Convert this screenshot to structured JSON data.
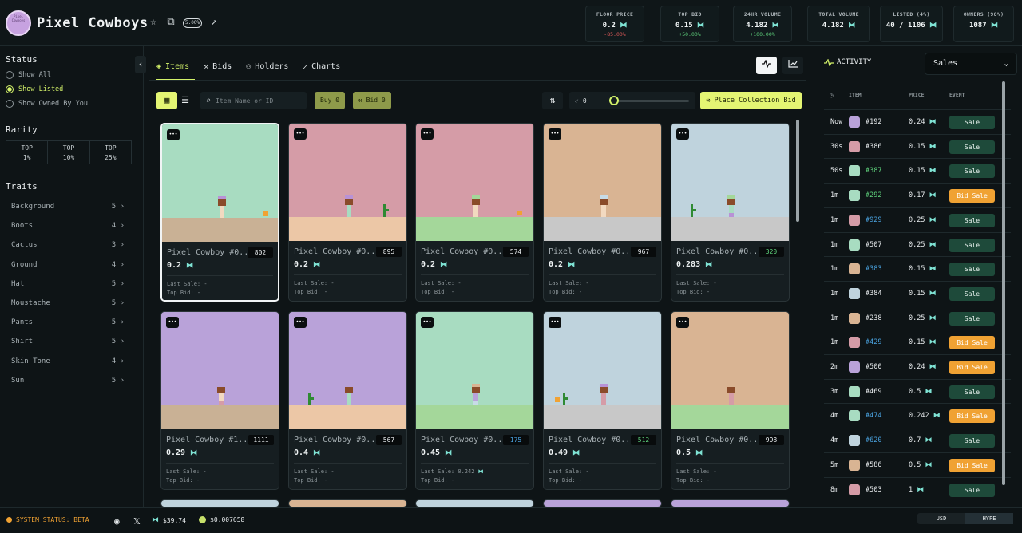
{
  "header": {
    "title": "Pixel Cowboys",
    "logo_text": "Pixel Cowboys",
    "royalty": "5.00%",
    "stats": [
      {
        "label": "FLOOR PRICE",
        "value": "0.2",
        "change": "-85.00%",
        "trend": "neg"
      },
      {
        "label": "TOP BID",
        "value": "0.15",
        "change": "+50.00%",
        "trend": "pos"
      },
      {
        "label": "24HR VOLUME",
        "value": "4.182",
        "change": "+100.00%",
        "trend": "pos"
      },
      {
        "label": "TOTAL VOLUME",
        "value": "4.182"
      },
      {
        "label": "LISTED (4%)",
        "value": "40 / 1106"
      },
      {
        "label": "OWNERS (98%)",
        "value": "1087"
      }
    ]
  },
  "sidebar": {
    "status_title": "Status",
    "status_options": [
      {
        "label": "Show All",
        "selected": false
      },
      {
        "label": "Show Listed",
        "selected": true
      },
      {
        "label": "Show Owned By You",
        "selected": false
      }
    ],
    "rarity_title": "Rarity",
    "rarity": [
      {
        "top": "TOP",
        "pct": "1%"
      },
      {
        "top": "TOP",
        "pct": "10%"
      },
      {
        "top": "TOP",
        "pct": "25%"
      }
    ],
    "traits_title": "Traits",
    "traits": [
      {
        "name": "Background",
        "count": "5"
      },
      {
        "name": "Boots",
        "count": "4"
      },
      {
        "name": "Cactus",
        "count": "3"
      },
      {
        "name": "Ground",
        "count": "4"
      },
      {
        "name": "Hat",
        "count": "5"
      },
      {
        "name": "Moustache",
        "count": "5"
      },
      {
        "name": "Pants",
        "count": "5"
      },
      {
        "name": "Shirt",
        "count": "5"
      },
      {
        "name": "Skin Tone",
        "count": "4"
      },
      {
        "name": "Sun",
        "count": "5"
      }
    ]
  },
  "tabs": [
    {
      "label": "Items",
      "icon": "layers-icon"
    },
    {
      "label": "Bids",
      "icon": "gavel-icon"
    },
    {
      "label": "Holders",
      "icon": "users-icon"
    },
    {
      "label": "Charts",
      "icon": "chart-icon"
    }
  ],
  "toolbar": {
    "search_placeholder": "Item Name or ID",
    "buy_label": "Buy 0",
    "bid_label": "Bid 0",
    "sweep_value": "0",
    "place_bid_label": "Place Collection Bid"
  },
  "colors": {
    "accent": "#d4f36a",
    "hype": "#7fe3d4",
    "sale": "#1e4a3a",
    "bid_sale": "#f0a233"
  },
  "cards": [
    {
      "name": "Pixel Cowboy #0...",
      "rank": "802",
      "price": "0.2",
      "last_sale": "Last Sale: -",
      "top_bid": "Top Bid: -",
      "bg": "#a8dcc1",
      "ground": "#c9b195",
      "hat": "#b892d6",
      "shirt": "#f2d9c0",
      "pants": "#f2d9c0",
      "cactus": false,
      "sun": true,
      "rank_color": "#e8ecee"
    },
    {
      "name": "Pixel Cowboy #0...",
      "rank": "895",
      "price": "0.2",
      "last_sale": "Last Sale: -",
      "top_bid": "Top Bid: -",
      "bg": "#d59ca7",
      "ground": "#ecc7a6",
      "hat": "#b892d6",
      "shirt": "#a8dcc1",
      "pants": "#a8dcc1",
      "cactus": true,
      "sun": false,
      "rank_color": "#e8ecee"
    },
    {
      "name": "Pixel Cowboy #0...",
      "rank": "574",
      "price": "0.2",
      "last_sale": "Last Sale: -",
      "top_bid": "Top Bid: -",
      "bg": "#d59ca7",
      "ground": "#a4d79a",
      "hat": "#a4d79a",
      "shirt": "#f2d9c0",
      "pants": "#f2d9c0",
      "cactus": false,
      "sun": true,
      "rank_color": "#e8ecee"
    },
    {
      "name": "Pixel Cowboy #0...",
      "rank": "967",
      "price": "0.2",
      "last_sale": "Last Sale: -",
      "top_bid": "Top Bid: -",
      "bg": "#d9b493",
      "ground": "#c8c8c8",
      "hat": "#c7dbe6",
      "shirt": "#f2d9c0",
      "pants": "#f2d9c0",
      "cactus": false,
      "sun": false,
      "rank_color": "#e8ecee"
    },
    {
      "name": "Pixel Cowboy #0...",
      "rank": "320",
      "price": "0.283",
      "last_sale": "Last Sale: -",
      "top_bid": "Top Bid: -",
      "bg": "#bfd3dd",
      "ground": "#c8c8c8",
      "hat": "#a4d79a",
      "shirt": "#a8dcc1",
      "pants": "#b892d6",
      "cactus": true,
      "sun": false,
      "rank_color": "#5fd37d"
    },
    {
      "name": "Pixel Cowboy #1...",
      "rank": "1111",
      "price": "0.29",
      "last_sale": "Last Sale: -",
      "top_bid": "Top Bid: -",
      "bg": "#b9a2d9",
      "ground": "#c9b195",
      "hat": "#b9a2d9",
      "shirt": "#f2d9c0",
      "pants": "#d59ca7",
      "cactus": false,
      "sun": false,
      "rank_color": "#e8ecee"
    },
    {
      "name": "Pixel Cowboy #0...",
      "rank": "567",
      "price": "0.4",
      "last_sale": "Last Sale: -",
      "top_bid": "Top Bid: -",
      "bg": "#b9a2d9",
      "ground": "#ecc7a6",
      "hat": "#b9a2d9",
      "shirt": "#a8dcc1",
      "pants": "#a8dcc1",
      "cactus": true,
      "sun": false,
      "rank_color": "#e8ecee"
    },
    {
      "name": "Pixel Cowboy #0...",
      "rank": "175",
      "price": "0.45",
      "last_sale": "Last Sale: 0.242",
      "top_bid": "Top Bid: -",
      "bg": "#a8dcc1",
      "ground": "#a4d79a",
      "hat": "#d9b493",
      "shirt": "#b9a2d9",
      "pants": "#c7dbe6",
      "cactus": false,
      "sun": false,
      "rank_color": "#4aa3e0"
    },
    {
      "name": "Pixel Cowboy #0...",
      "rank": "512",
      "price": "0.49",
      "last_sale": "Last Sale: -",
      "top_bid": "Top Bid: -",
      "bg": "#bfd3dd",
      "ground": "#c8c8c8",
      "hat": "#b892d6",
      "shirt": "#d59ca7",
      "pants": "#d59ca7",
      "cactus": true,
      "sun": true,
      "rank_color": "#5fd37d"
    },
    {
      "name": "Pixel Cowboy #0...",
      "rank": "998",
      "price": "0.5",
      "last_sale": "Last Sale: -",
      "top_bid": "Top Bid: -",
      "bg": "#d9b493",
      "ground": "#a4d79a",
      "hat": "#d9b493",
      "shirt": "#d59ca7",
      "pants": "#d59ca7",
      "cactus": false,
      "sun": false,
      "rank_color": "#e8ecee"
    }
  ],
  "peek_cards": [
    "#bfd3dd",
    "#d9b493",
    "#bfd3dd",
    "#b9a2d9",
    "#b9a2d9"
  ],
  "activity": {
    "title": "ACTIVITY",
    "filter": "Sales",
    "headers": {
      "item": "ITEM",
      "price": "PRICE",
      "event": "EVENT"
    },
    "rows": [
      {
        "time": "Now",
        "id": "#192",
        "price": "0.24",
        "event": "Sale",
        "swatch": "#b9a2d9",
        "id_color": "white"
      },
      {
        "time": "30s",
        "id": "#386",
        "price": "0.15",
        "event": "Sale",
        "swatch": "#d59ca7",
        "id_color": "white"
      },
      {
        "time": "50s",
        "id": "#387",
        "price": "0.15",
        "event": "Sale",
        "swatch": "#a8dcc1",
        "id_color": "green"
      },
      {
        "time": "1m",
        "id": "#292",
        "price": "0.17",
        "event": "Bid Sale",
        "swatch": "#a8dcc1",
        "id_color": "green"
      },
      {
        "time": "1m",
        "id": "#929",
        "price": "0.25",
        "event": "Sale",
        "swatch": "#d59ca7",
        "id_color": "blue"
      },
      {
        "time": "1m",
        "id": "#507",
        "price": "0.25",
        "event": "Sale",
        "swatch": "#a8dcc1",
        "id_color": "white"
      },
      {
        "time": "1m",
        "id": "#383",
        "price": "0.15",
        "event": "Sale",
        "swatch": "#d9b493",
        "id_color": "blue"
      },
      {
        "time": "1m",
        "id": "#384",
        "price": "0.15",
        "event": "Sale",
        "swatch": "#bfd3dd",
        "id_color": "white"
      },
      {
        "time": "1m",
        "id": "#238",
        "price": "0.25",
        "event": "Sale",
        "swatch": "#d9b493",
        "id_color": "white"
      },
      {
        "time": "1m",
        "id": "#429",
        "price": "0.15",
        "event": "Bid Sale",
        "swatch": "#d59ca7",
        "id_color": "blue"
      },
      {
        "time": "2m",
        "id": "#500",
        "price": "0.24",
        "event": "Bid Sale",
        "swatch": "#b9a2d9",
        "id_color": "white"
      },
      {
        "time": "3m",
        "id": "#469",
        "price": "0.5",
        "event": "Sale",
        "swatch": "#a8dcc1",
        "id_color": "white"
      },
      {
        "time": "4m",
        "id": "#474",
        "price": "0.242",
        "event": "Bid Sale",
        "swatch": "#a8dcc1",
        "id_color": "blue"
      },
      {
        "time": "4m",
        "id": "#620",
        "price": "0.7",
        "event": "Sale",
        "swatch": "#bfd3dd",
        "id_color": "blue"
      },
      {
        "time": "5m",
        "id": "#586",
        "price": "0.5",
        "event": "Bid Sale",
        "swatch": "#d9b493",
        "id_color": "white"
      },
      {
        "time": "8m",
        "id": "#503",
        "price": "1",
        "event": "Sale",
        "swatch": "#d59ca7",
        "id_color": "white"
      }
    ]
  },
  "footer": {
    "status": "SYSTEM STATUS: BETA",
    "hype_price": "$39.74",
    "token_price": "$0.007658",
    "currency_options": [
      "USD",
      "HYPE"
    ],
    "currency_selected": "HYPE"
  }
}
